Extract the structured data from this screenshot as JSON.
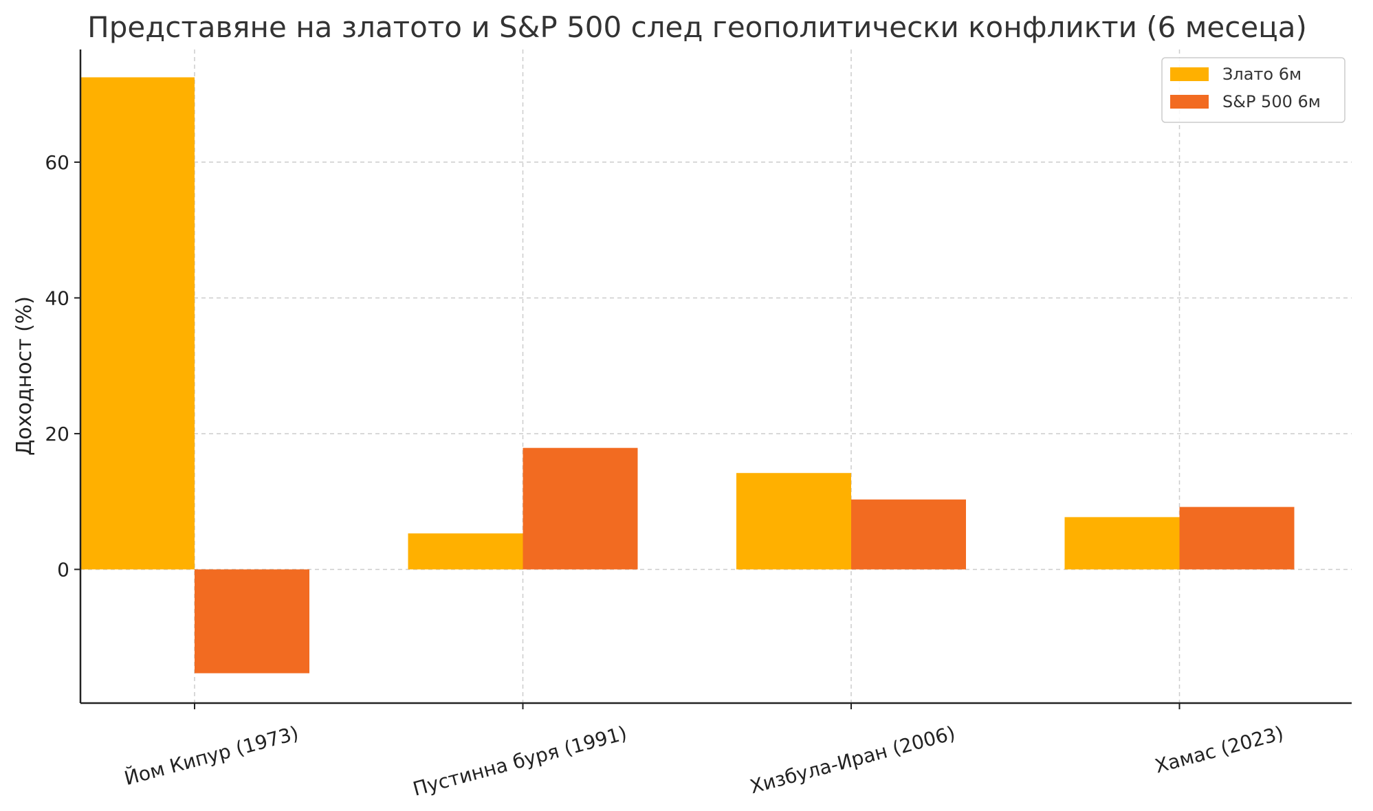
{
  "chart_data": {
    "type": "bar",
    "title": "Представяне на златото и S&P 500 след геополитически конфликти (6 месеца)",
    "xlabel": "",
    "ylabel": "Доходност (%)",
    "categories": [
      "Йом Кипур (1973)",
      "Пустинна буря (1991)",
      "Хизбула-Иран (2006)",
      "Хамас (2023)"
    ],
    "series": [
      {
        "name": "Злато 6м",
        "color": "#FFB000",
        "values": [
          72.5,
          5.3,
          14.2,
          7.7
        ]
      },
      {
        "name": "S&P 500 6м",
        "color": "#F26B21",
        "values": [
          -15.3,
          17.9,
          10.3,
          9.2
        ]
      }
    ],
    "yticks": [
      0,
      20,
      40,
      60
    ],
    "ylim": [
      -19.7,
      76.6
    ],
    "grid": true,
    "legend": "top-right"
  }
}
